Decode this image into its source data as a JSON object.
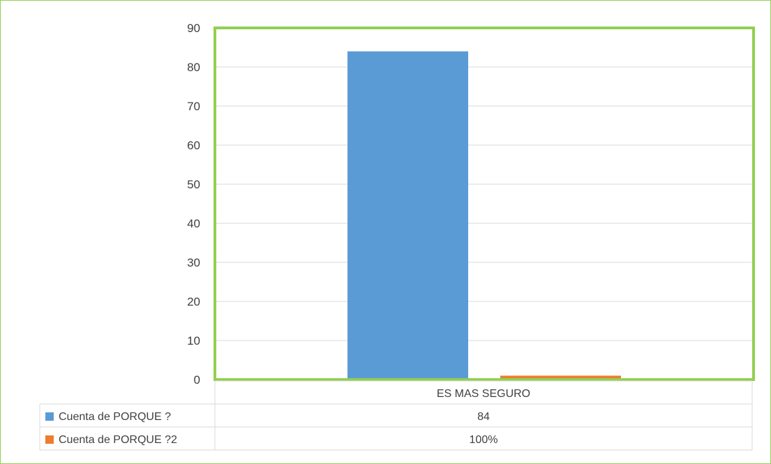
{
  "chart_data": {
    "type": "bar",
    "title": "",
    "categories": [
      "ES MAS SEGURO"
    ],
    "ylim": [
      0,
      90
    ],
    "yticks": [
      0,
      10,
      20,
      30,
      40,
      50,
      60,
      70,
      80,
      90
    ],
    "grid": true,
    "series": [
      {
        "name": "Cuenta de PORQUE ?",
        "values": [
          84
        ],
        "table_labels": [
          "84"
        ],
        "color": "#5b9bd5"
      },
      {
        "name": "Cuenta de PORQUE ?2",
        "values": [
          1
        ],
        "table_labels": [
          "100%"
        ],
        "color": "#ed7d31"
      }
    ],
    "legend": "data-table",
    "plot_border_color": "#92d050"
  }
}
